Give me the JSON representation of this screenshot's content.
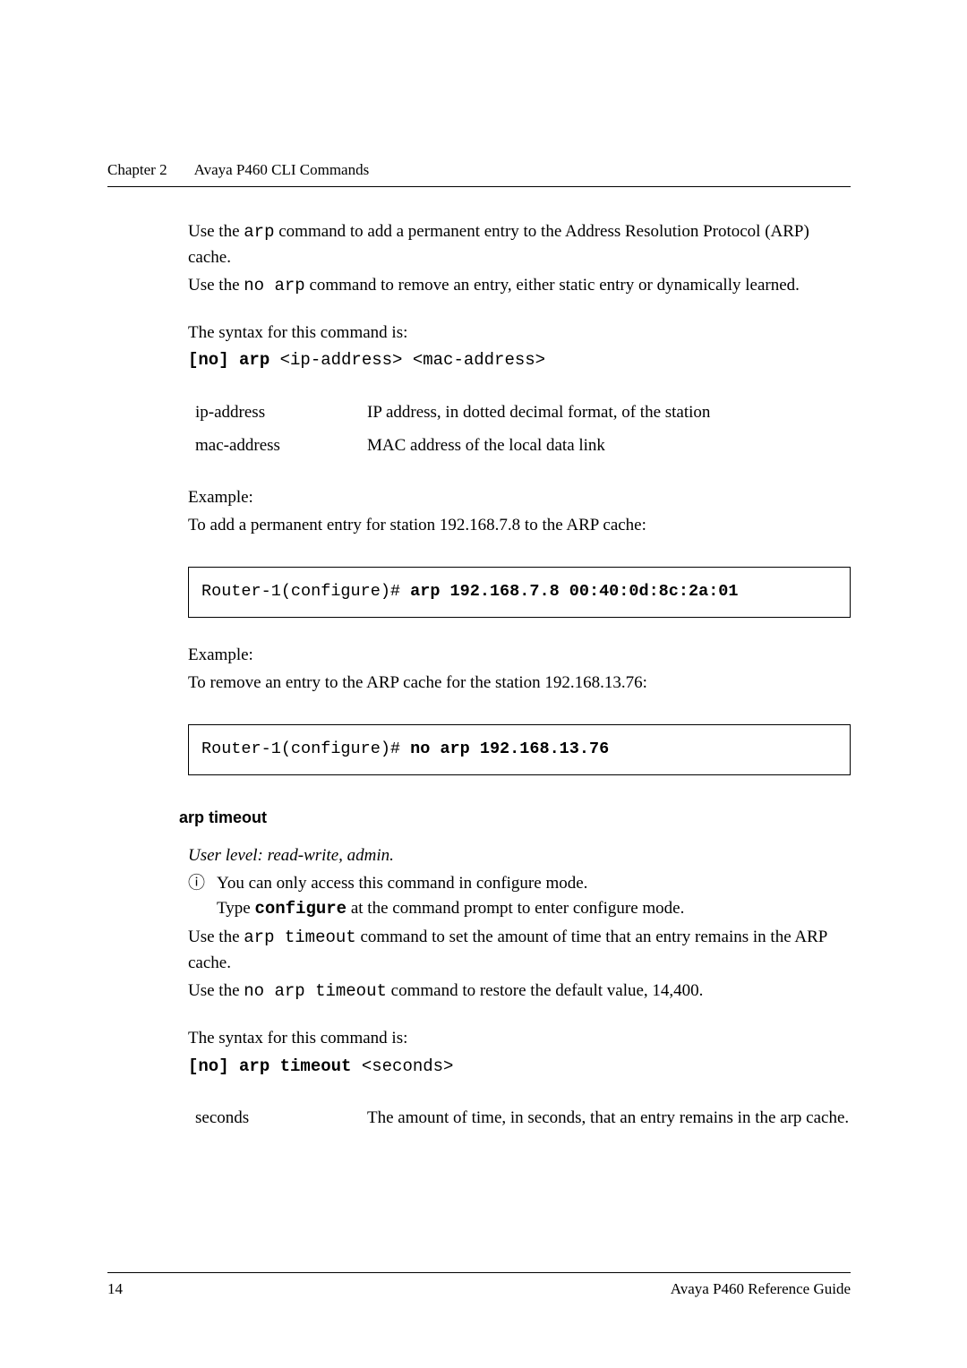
{
  "header": {
    "chapter_label": "Chapter 2",
    "chapter_title": "Avaya P460 CLI Commands"
  },
  "arp_section": {
    "intro1_pre": "Use the ",
    "intro1_code": "arp",
    "intro1_post": " command to add a permanent entry to the Address Resolution Protocol (ARP) cache.",
    "intro2_pre": "Use the ",
    "intro2_code": "no arp",
    "intro2_post": " command to remove an entry, either static entry or dynamically learned.",
    "syntax_label": "The syntax for this command is:",
    "syntax_bold": "[no] arp",
    "syntax_args": " <ip-address> <mac-address>",
    "params": [
      {
        "name": "ip-address",
        "desc": "IP address, in dotted decimal format, of the station"
      },
      {
        "name": "mac-address",
        "desc": "MAC address of the local data link"
      }
    ],
    "example1_label": "Example:",
    "example1_desc": "To add a permanent entry for station 192.168.7.8 to the ARP cache:",
    "example1_prompt": "Router-1(configure)# ",
    "example1_cmd": "arp 192.168.7.8 00:40:0d:8c:2a:01",
    "example2_label": "Example:",
    "example2_desc": "To remove an entry to the ARP cache for the station 192.168.13.76:",
    "example2_prompt": "Router-1(configure)# ",
    "example2_cmd": "no arp 192.168.13.76"
  },
  "timeout_section": {
    "heading": "arp timeout",
    "user_level": "User level: read-write, admin.",
    "info_icon": "ⓘ",
    "info1": "You can only access this command in configure mode.",
    "info2_pre": "Type ",
    "info2_code": "configure",
    "info2_post": " at the command prompt to enter configure mode.",
    "desc1_pre": "Use the ",
    "desc1_code": "arp timeout",
    "desc1_post": " command to set the amount of time that an entry remains in the ARP cache.",
    "desc2_pre": "Use the ",
    "desc2_code": "no arp timeout",
    "desc2_post": " command to restore the default value, 14,400.",
    "syntax_label": "The syntax for this command is:",
    "syntax_bold": "[no] arp timeout",
    "syntax_args": " <seconds>",
    "params": [
      {
        "name": "seconds",
        "desc": "The amount of time, in seconds, that an entry remains in the arp cache."
      }
    ]
  },
  "footer": {
    "page_num": "14",
    "guide_label": "Avaya P460 Reference Guide"
  }
}
